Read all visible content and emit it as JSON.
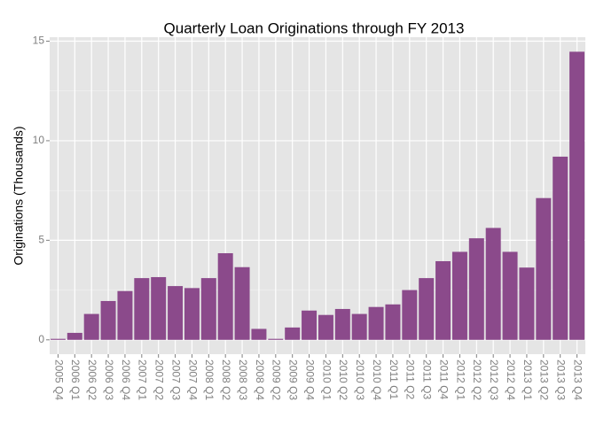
{
  "chart_data": {
    "type": "bar",
    "title": "Quarterly Loan Originations through FY 2013",
    "y_label": "Originations (Thousands)",
    "categories": [
      "2005 Q4",
      "2006 Q1",
      "2006 Q2",
      "2006 Q3",
      "2006 Q4",
      "2007 Q1",
      "2007 Q2",
      "2007 Q3",
      "2007 Q4",
      "2008 Q1",
      "2008 Q2",
      "2008 Q3",
      "2008 Q4",
      "2009 Q2",
      "2009 Q3",
      "2009 Q4",
      "2010 Q1",
      "2010 Q2",
      "2010 Q3",
      "2010 Q4",
      "2011 Q1",
      "2011 Q2",
      "2011 Q3",
      "2011 Q4",
      "2012 Q1",
      "2012 Q2",
      "2012 Q3",
      "2012 Q4",
      "2013 Q1",
      "2013 Q2",
      "2013 Q3",
      "2013 Q4"
    ],
    "values": [
      0.05,
      0.35,
      1.3,
      1.95,
      2.45,
      3.1,
      3.15,
      2.7,
      2.6,
      3.1,
      4.35,
      3.65,
      0.55,
      0.05,
      0.62,
      1.47,
      1.25,
      1.55,
      1.3,
      1.65,
      1.78,
      2.5,
      3.1,
      3.95,
      4.42,
      5.1,
      5.62,
      4.42,
      3.63,
      7.12,
      9.2,
      14.47
    ],
    "color": "#8b4a8b",
    "ylim": [
      -0.72,
      15.2
    ],
    "yticks": [
      0,
      5,
      10,
      15
    ],
    "grid": true
  }
}
